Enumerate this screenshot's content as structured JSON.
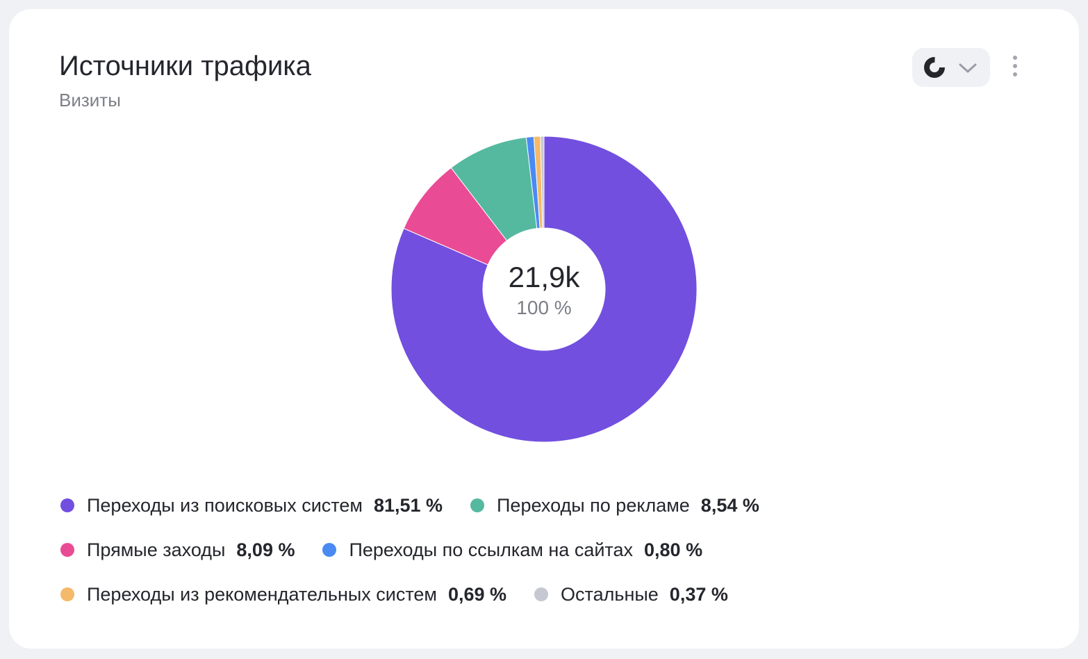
{
  "header": {
    "title": "Источники трафика",
    "subtitle": "Визиты",
    "chart_switch_icon": "pie-chart-icon",
    "dropdown_icon": "chevron-down-icon",
    "menu_icon": "more-vertical-icon"
  },
  "center": {
    "value": "21,9k",
    "percent": "100 %"
  },
  "chart_data": {
    "type": "pie",
    "donut": true,
    "categories": [
      "Переходы из поисковых систем",
      "Переходы по рекламе",
      "Прямые заходы",
      "Переходы по ссылкам на сайтах",
      "Переходы из рекомендательных систем",
      "Остальные"
    ],
    "values": [
      81.51,
      8.54,
      8.09,
      0.8,
      0.69,
      0.37
    ],
    "labels": [
      "81,51 %",
      "8,54 %",
      "8,09 %",
      "0,80 %",
      "0,69 %",
      "0,37 %"
    ],
    "colors": [
      "#724fdf",
      "#55b99f",
      "#ea4b95",
      "#4a8af4",
      "#f4b969",
      "#c6c8d1"
    ],
    "total": "21,9k",
    "legend_position": "bottom"
  }
}
